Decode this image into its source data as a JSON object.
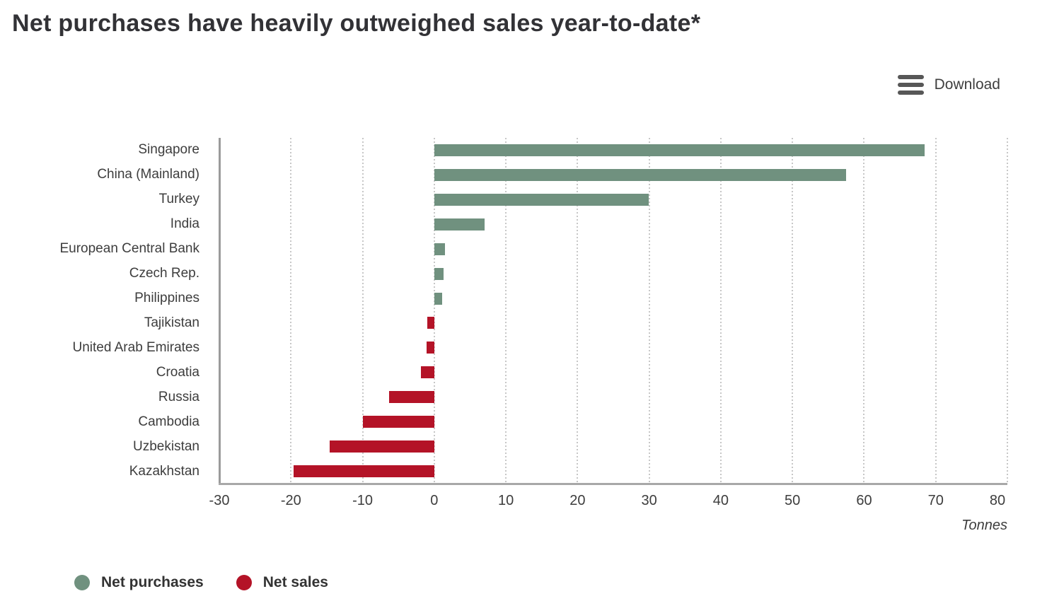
{
  "header": {
    "title": "Net purchases have heavily outweighed sales year-to-date*"
  },
  "toolbar": {
    "download_label": "Download"
  },
  "chart_data": {
    "type": "bar",
    "orientation": "horizontal",
    "title": "Net purchases have heavily outweighed sales year-to-date*",
    "categories": [
      "Singapore",
      "China (Mainland)",
      "Turkey",
      "India",
      "European Central Bank",
      "Czech Rep.",
      "Philippines",
      "Tajikistan",
      "United Arab Emirates",
      "Croatia",
      "Russia",
      "Cambodia",
      "Uzbekistan",
      "Kazakhstan"
    ],
    "values": [
      68.4,
      57.5,
      29.9,
      7.0,
      1.5,
      1.3,
      1.1,
      -1.0,
      -1.1,
      -1.9,
      -6.3,
      -10.0,
      -14.6,
      -19.6
    ],
    "xlabel": "Tonnes",
    "ylabel": "",
    "xlim": [
      -30,
      80
    ],
    "ticks": [
      -30,
      -20,
      -10,
      0,
      10,
      20,
      30,
      40,
      50,
      60,
      70,
      80
    ],
    "grid": "vertical-dotted",
    "colors": {
      "positive": "#70917f",
      "negative": "#b41327",
      "gridline": "#c7c7c7",
      "axis": "#9b9b9b"
    },
    "legend": [
      {
        "label": "Net purchases",
        "color": "#70917f"
      },
      {
        "label": "Net sales",
        "color": "#b41327"
      }
    ],
    "legend_position": "bottom-left"
  }
}
